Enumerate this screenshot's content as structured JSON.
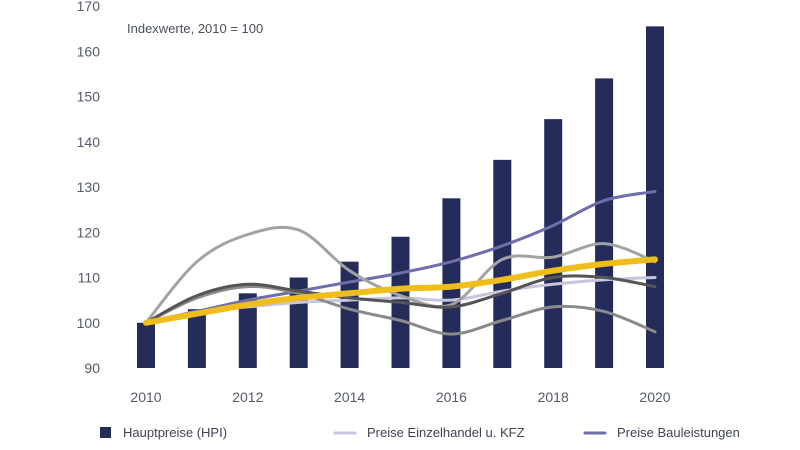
{
  "chart_data": {
    "type": "bar+line",
    "annotation": "Indexwerte, 2010 = 100",
    "ylim": [
      90,
      170
    ],
    "yticks": [
      90,
      100,
      110,
      120,
      130,
      140,
      150,
      160,
      170
    ],
    "years": [
      2010,
      2011,
      2012,
      2013,
      2014,
      2015,
      2016,
      2017,
      2018,
      2019,
      2020
    ],
    "xtick_labels": [
      "2010",
      "2012",
      "2014",
      "2016",
      "2018",
      "2020"
    ],
    "xtick_years": [
      2010,
      2012,
      2014,
      2016,
      2018,
      2020
    ],
    "grid": false,
    "legend_position": "bottom",
    "bars": {
      "name": "Hauptpreise (HPI)",
      "color": "#252c5a",
      "values": [
        100,
        103,
        106.5,
        110,
        113.5,
        119,
        127.5,
        136,
        145,
        154,
        165.5
      ]
    },
    "lines": [
      {
        "name": "Preise Einzelhandel u. KFZ",
        "color": "#c8c5df",
        "width": 3,
        "legend": true,
        "values": [
          100,
          102.5,
          103.5,
          104.5,
          105,
          105.5,
          105,
          107,
          108.5,
          109.5,
          110
        ]
      },
      {
        "name": "Preise Bauleistungen",
        "color": "#6d6eaa",
        "width": 3,
        "legend": true,
        "values": [
          100,
          102.5,
          105,
          107,
          109,
          111,
          113.5,
          117,
          121.5,
          127,
          129
        ]
      },
      {
        "name": "",
        "color": "#a3a3a3",
        "width": 3,
        "legend": false,
        "values": [
          100,
          113.5,
          119.5,
          120.5,
          111.5,
          106,
          104,
          114,
          114.5,
          117.5,
          113.5
        ]
      },
      {
        "name": "",
        "color": "#8a8a8a",
        "width": 3,
        "legend": false,
        "values": [
          100,
          105.5,
          108,
          106.5,
          103,
          100.5,
          97.5,
          100.5,
          103.5,
          102.5,
          98
        ]
      },
      {
        "name": "",
        "color": "#555555",
        "width": 3,
        "legend": false,
        "values": [
          100,
          106,
          108.5,
          107,
          105.5,
          104.5,
          103.5,
          106.5,
          110,
          110,
          108
        ]
      },
      {
        "name": "",
        "color": "#f0be1a",
        "width": 6,
        "legend": false,
        "values": [
          100,
          102,
          104,
          105.5,
          106.5,
          107.5,
          108,
          109.5,
          111.5,
          113,
          114
        ]
      }
    ],
    "legend": [
      {
        "label": "Hauptpreise (HPI)",
        "type": "square",
        "color": "#252c5a"
      },
      {
        "label": "Preise Einzelhandel u. KFZ",
        "type": "line",
        "color": "#c8c5df"
      },
      {
        "label": "Preise Bauleistungen",
        "type": "line",
        "color": "#6d6eaa"
      }
    ]
  }
}
